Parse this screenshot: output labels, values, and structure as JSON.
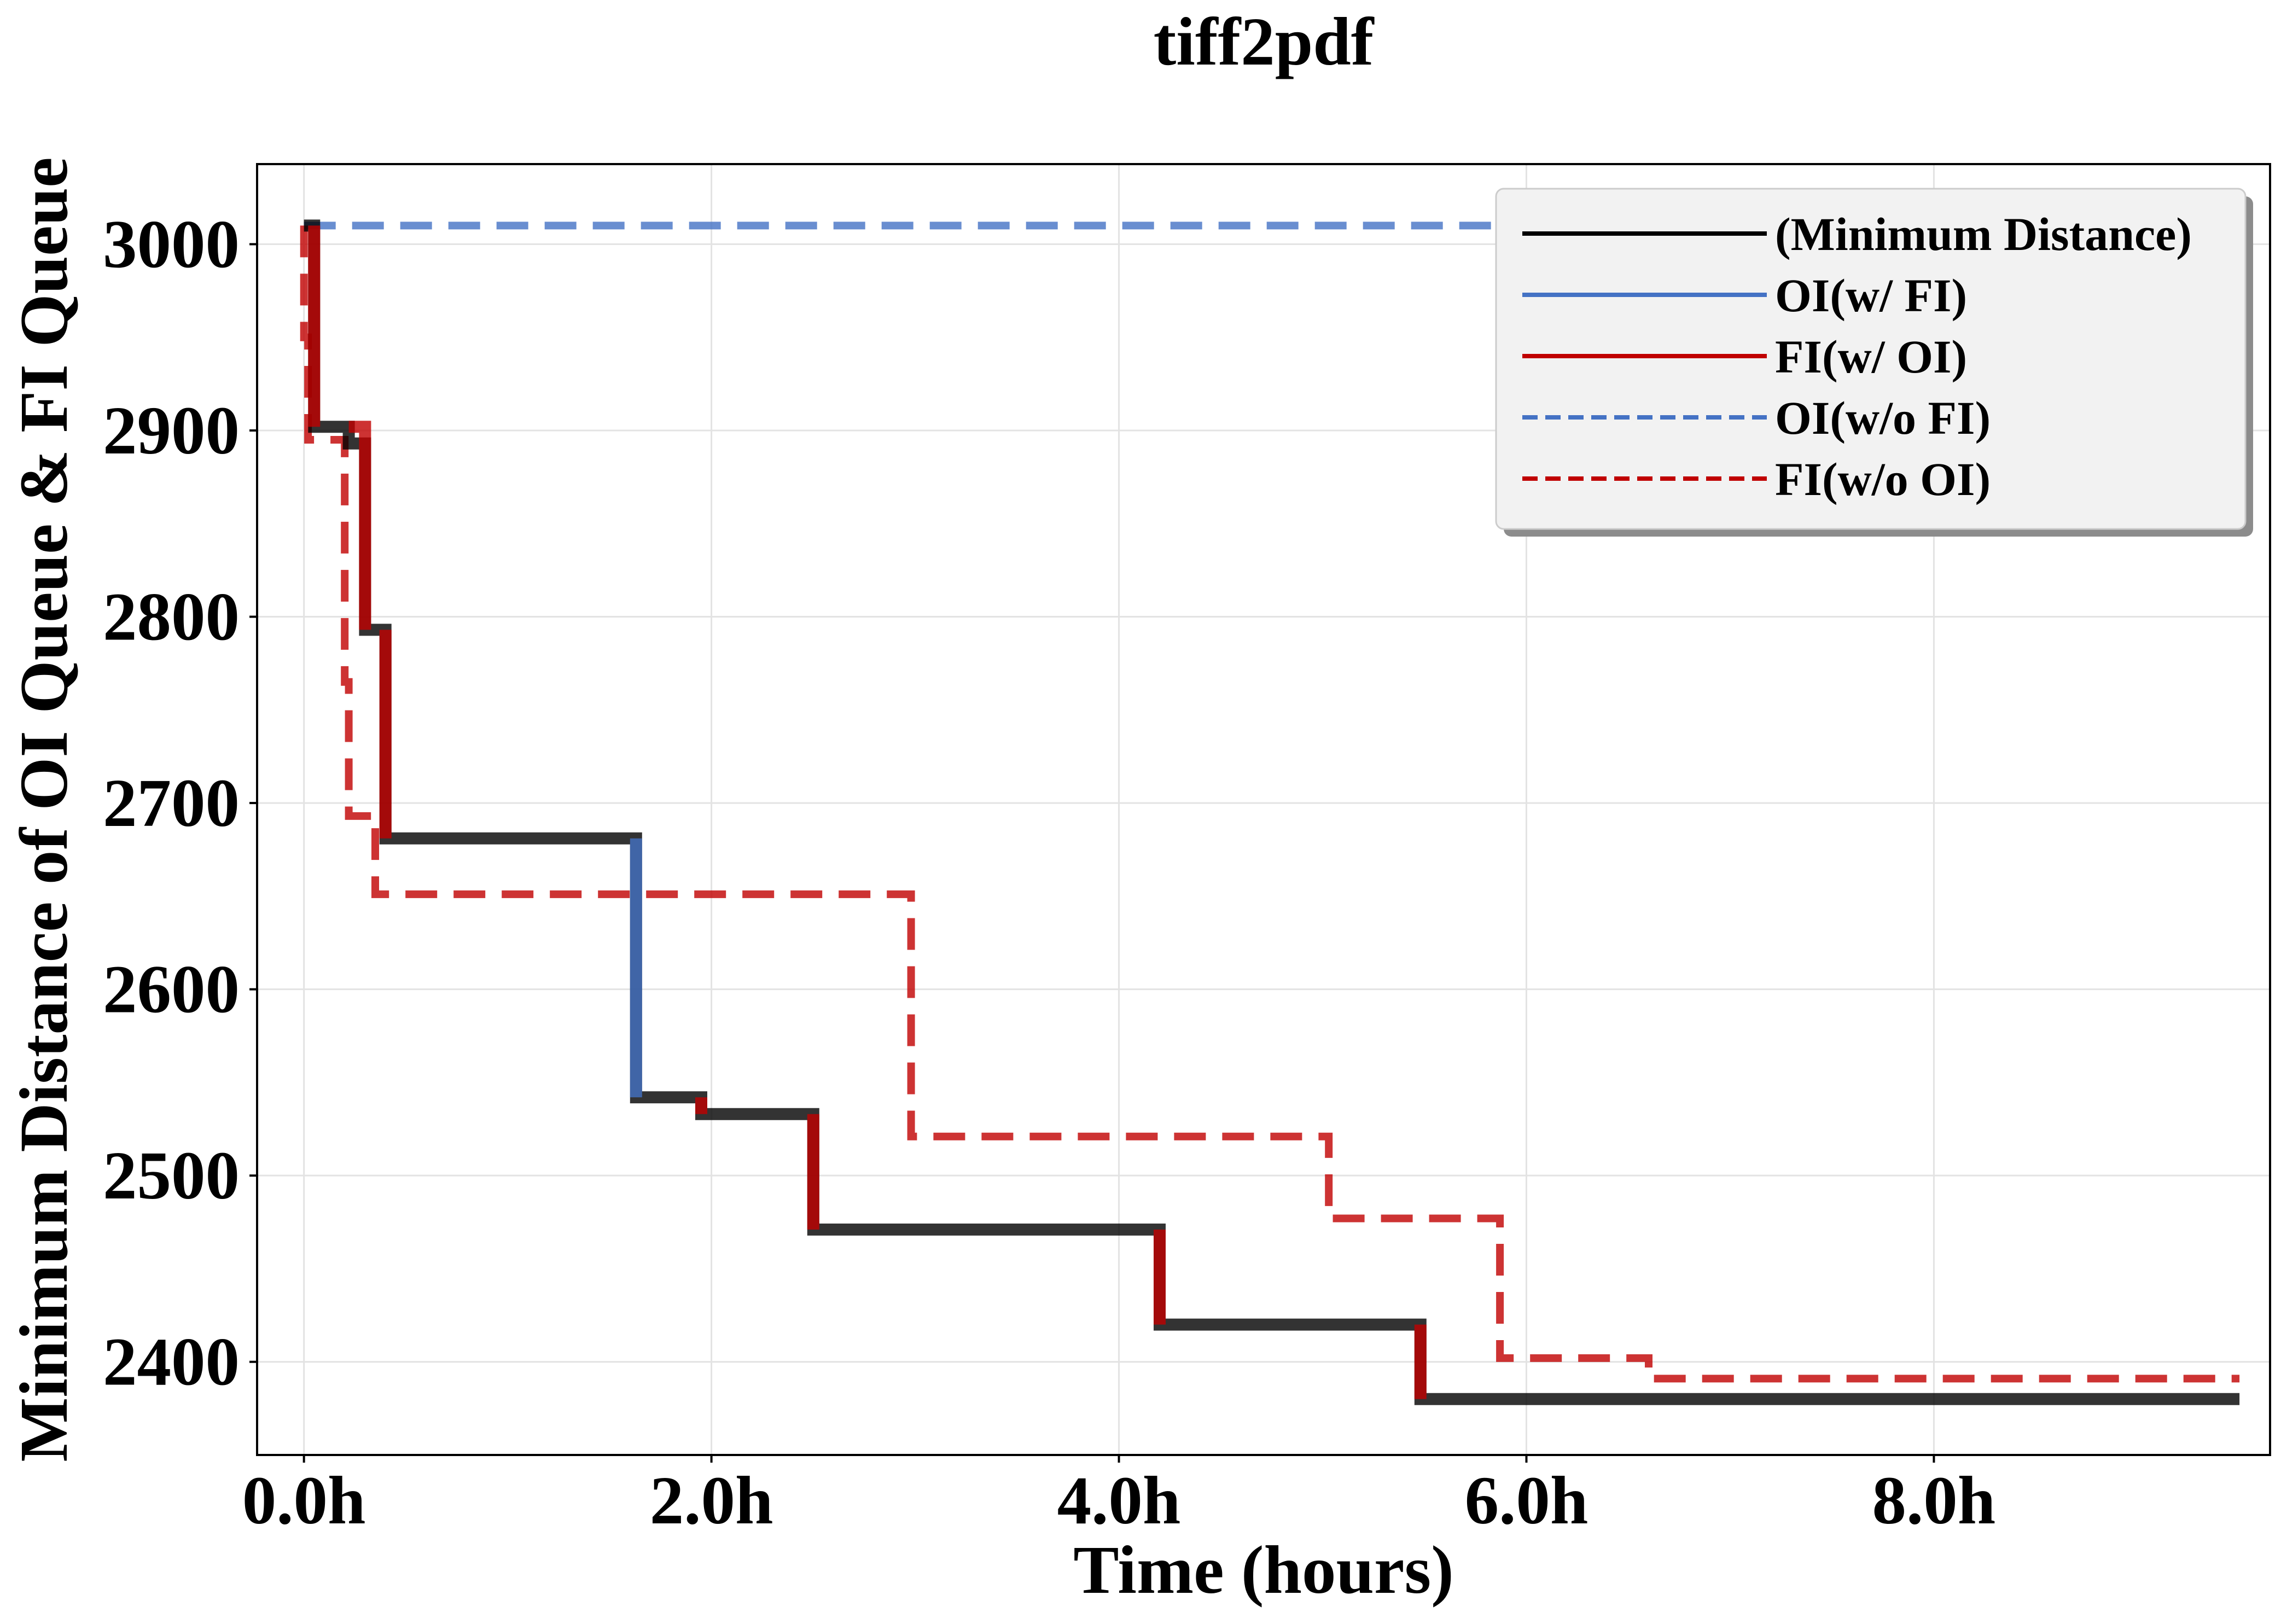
{
  "chart_data": {
    "type": "line",
    "title": "tiff2pdf",
    "xlabel": "Time (hours)",
    "ylabel": "Minimum Distance of OI Queue & FI Queue",
    "xlim": [
      -0.23,
      9.65
    ],
    "ylim": [
      2350,
      3043
    ],
    "x_ticks": [
      0,
      2,
      4,
      6,
      8
    ],
    "x_tick_labels": [
      "0.0h",
      "2.0h",
      "4.0h",
      "6.0h",
      "8.0h"
    ],
    "y_ticks": [
      2400,
      2500,
      2600,
      2700,
      2800,
      2900,
      3000
    ],
    "y_tick_labels": [
      "2400",
      "2500",
      "2600",
      "2700",
      "2800",
      "2900",
      "3000"
    ],
    "grid": true,
    "legend_position": "top-right",
    "legend": [
      "(Minimum Distance)",
      "OI(w/ FI)",
      "FI(w/ OI)",
      "OI(w/o FI)",
      "FI(w/o OI)"
    ],
    "series": [
      {
        "name": "(Minimum Distance)",
        "color": "#000000",
        "style": "solid",
        "points": [
          [
            0,
            3010
          ],
          [
            0.05,
            3010
          ],
          [
            0.05,
            2902
          ],
          [
            0.22,
            2902
          ],
          [
            0.22,
            2893
          ],
          [
            0.3,
            2893
          ],
          [
            0.3,
            2793
          ],
          [
            0.4,
            2793
          ],
          [
            0.4,
            2681
          ],
          [
            1.63,
            2681
          ],
          [
            1.63,
            2542
          ],
          [
            1.95,
            2542
          ],
          [
            1.95,
            2533
          ],
          [
            2.5,
            2533
          ],
          [
            2.5,
            2471
          ],
          [
            4.2,
            2471
          ],
          [
            4.2,
            2420
          ],
          [
            5.48,
            2420
          ],
          [
            5.48,
            2380
          ],
          [
            9.5,
            2380
          ]
        ]
      },
      {
        "name": "OI(w/ FI)",
        "color": "#4472c4",
        "style": "solid",
        "segments": [
          [
            [
              1.63,
              2681
            ],
            [
              1.63,
              2542
            ]
          ]
        ]
      },
      {
        "name": "FI(w/ OI)",
        "color": "#c00000",
        "style": "solid",
        "segments": [
          [
            [
              0.05,
              3010
            ],
            [
              0.05,
              2902
            ]
          ],
          [
            [
              0.22,
              2902
            ],
            [
              0.3,
              2902
            ],
            [
              0.3,
              2793
            ]
          ],
          [
            [
              0.4,
              2793
            ],
            [
              0.4,
              2681
            ]
          ],
          [
            [
              1.95,
              2542
            ],
            [
              1.95,
              2533
            ]
          ],
          [
            [
              2.5,
              2533
            ],
            [
              2.5,
              2471
            ]
          ],
          [
            [
              4.2,
              2471
            ],
            [
              4.2,
              2420
            ]
          ],
          [
            [
              5.48,
              2420
            ],
            [
              5.48,
              2380
            ]
          ]
        ]
      },
      {
        "name": "OI(w/o FI)",
        "color": "#4472c4",
        "style": "dashed",
        "points": [
          [
            0,
            3010
          ],
          [
            9.5,
            3010
          ]
        ]
      },
      {
        "name": "FI(w/o OI)",
        "color": "#c00000",
        "style": "dashed",
        "points": [
          [
            0,
            3010
          ],
          [
            0,
            2950
          ],
          [
            0.02,
            2950
          ],
          [
            0.02,
            2895
          ],
          [
            0.2,
            2895
          ],
          [
            0.2,
            2765
          ],
          [
            0.22,
            2765
          ],
          [
            0.22,
            2693
          ],
          [
            0.35,
            2693
          ],
          [
            0.35,
            2651
          ],
          [
            2.98,
            2651
          ],
          [
            2.98,
            2521
          ],
          [
            5.03,
            2521
          ],
          [
            5.03,
            2477
          ],
          [
            5.87,
            2477
          ],
          [
            5.87,
            2402
          ],
          [
            6.6,
            2402
          ],
          [
            6.6,
            2391
          ],
          [
            9.5,
            2391
          ]
        ]
      }
    ]
  }
}
